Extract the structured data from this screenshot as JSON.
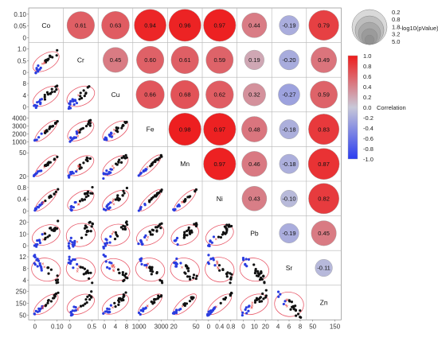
{
  "chart_data": {
    "type": "scatterplot-matrix-correlation",
    "variables": [
      "Co",
      "Cr",
      "Cu",
      "Fe",
      "Mn",
      "Ni",
      "Pb",
      "Sr",
      "Zn"
    ],
    "correlation_upper": [
      {
        "row": "Co",
        "col": "Cr",
        "r": 0.61,
        "label": "0.61"
      },
      {
        "row": "Co",
        "col": "Cu",
        "r": 0.63,
        "label": "0.63"
      },
      {
        "row": "Co",
        "col": "Fe",
        "r": 0.94,
        "label": "0.94"
      },
      {
        "row": "Co",
        "col": "Mn",
        "r": 0.96,
        "label": "0.96"
      },
      {
        "row": "Co",
        "col": "Ni",
        "r": 0.97,
        "label": "0.97"
      },
      {
        "row": "Co",
        "col": "Pb",
        "r": 0.44,
        "label": "0.44"
      },
      {
        "row": "Co",
        "col": "Sr",
        "r": -0.19,
        "label": "-0.19"
      },
      {
        "row": "Co",
        "col": "Zn",
        "r": 0.79,
        "label": "0.79"
      },
      {
        "row": "Cr",
        "col": "Cu",
        "r": 0.45,
        "label": "0.45"
      },
      {
        "row": "Cr",
        "col": "Fe",
        "r": 0.6,
        "label": "0.60"
      },
      {
        "row": "Cr",
        "col": "Mn",
        "r": 0.61,
        "label": "0.61"
      },
      {
        "row": "Cr",
        "col": "Ni",
        "r": 0.59,
        "label": "0.59"
      },
      {
        "row": "Cr",
        "col": "Pb",
        "r": 0.19,
        "label": "0.19"
      },
      {
        "row": "Cr",
        "col": "Sr",
        "r": -0.2,
        "label": "-0.20"
      },
      {
        "row": "Cr",
        "col": "Zn",
        "r": 0.49,
        "label": "0.49"
      },
      {
        "row": "Cu",
        "col": "Fe",
        "r": 0.66,
        "label": "0.66"
      },
      {
        "row": "Cu",
        "col": "Mn",
        "r": 0.68,
        "label": "0.68"
      },
      {
        "row": "Cu",
        "col": "Ni",
        "r": 0.62,
        "label": "0.62"
      },
      {
        "row": "Cu",
        "col": "Pb",
        "r": 0.32,
        "label": "0.32"
      },
      {
        "row": "Cu",
        "col": "Sr",
        "r": -0.27,
        "label": "-0.27"
      },
      {
        "row": "Cu",
        "col": "Zn",
        "r": 0.59,
        "label": "0.59"
      },
      {
        "row": "Fe",
        "col": "Mn",
        "r": 0.98,
        "label": "0.98"
      },
      {
        "row": "Fe",
        "col": "Ni",
        "r": 0.97,
        "label": "0.97"
      },
      {
        "row": "Fe",
        "col": "Pb",
        "r": 0.48,
        "label": "0.48"
      },
      {
        "row": "Fe",
        "col": "Sr",
        "r": -0.18,
        "label": "-0.18"
      },
      {
        "row": "Fe",
        "col": "Zn",
        "r": 0.83,
        "label": "0.83"
      },
      {
        "row": "Mn",
        "col": "Ni",
        "r": 0.97,
        "label": "0.97"
      },
      {
        "row": "Mn",
        "col": "Pb",
        "r": 0.46,
        "label": "0.46"
      },
      {
        "row": "Mn",
        "col": "Sr",
        "r": -0.18,
        "label": "-0.18"
      },
      {
        "row": "Mn",
        "col": "Zn",
        "r": 0.87,
        "label": "0.87"
      },
      {
        "row": "Ni",
        "col": "Pb",
        "r": 0.43,
        "label": "0.43"
      },
      {
        "row": "Ni",
        "col": "Sr",
        "r": -0.1,
        "label": "-0.10"
      },
      {
        "row": "Ni",
        "col": "Zn",
        "r": 0.82,
        "label": "0.82"
      },
      {
        "row": "Pb",
        "col": "Sr",
        "r": -0.19,
        "label": "-0.19"
      },
      {
        "row": "Pb",
        "col": "Zn",
        "r": 0.45,
        "label": "0.45"
      },
      {
        "row": "Sr",
        "col": "Zn",
        "r": -0.11,
        "label": "-0.11"
      }
    ],
    "x_axis_ticks": [
      {
        "var": "Co",
        "ticks": [
          "0",
          "0.10"
        ]
      },
      {
        "var": "Cr",
        "ticks": [
          "0",
          "0.5"
        ]
      },
      {
        "var": "Cu",
        "ticks": [
          "0",
          "4",
          "8"
        ]
      },
      {
        "var": "Fe",
        "ticks": [
          "1000",
          "3000"
        ]
      },
      {
        "var": "Mn",
        "ticks": [
          "20",
          "50"
        ]
      },
      {
        "var": "Ni",
        "ticks": [
          "0",
          "0.4",
          "0.8"
        ]
      },
      {
        "var": "Pb",
        "ticks": [
          "0",
          "10",
          "20"
        ]
      },
      {
        "var": "Sr",
        "ticks": [
          "4",
          "6",
          "8"
        ]
      },
      {
        "var": "Zn",
        "ticks": [
          "50",
          "150"
        ]
      }
    ],
    "y_axis_ticks": [
      {
        "var": "Co",
        "ticks": [
          "0.10",
          "0.05",
          "0"
        ]
      },
      {
        "var": "Cr",
        "ticks": [
          "1.0",
          "0.5",
          "0"
        ]
      },
      {
        "var": "Cu",
        "ticks": [
          "8",
          "4",
          "0"
        ]
      },
      {
        "var": "Fe",
        "ticks": [
          "4000",
          "3000",
          "2000",
          "1000"
        ]
      },
      {
        "var": "Mn",
        "ticks": [
          "50",
          "20"
        ]
      },
      {
        "var": "Ni",
        "ticks": [
          "0.8",
          "0.4",
          "0"
        ]
      },
      {
        "var": "Pb",
        "ticks": [
          "20",
          "10",
          "0"
        ]
      },
      {
        "var": "Sr",
        "ticks": [
          "12",
          "8",
          "4"
        ]
      },
      {
        "var": "Zn",
        "ticks": [
          "250",
          "150",
          "50"
        ]
      }
    ],
    "size_legend": {
      "title": "-log10(pValue)",
      "labels": [
        "0.2",
        "0.8",
        "1.8",
        "3.2",
        "5.0"
      ]
    },
    "color_legend": {
      "title": "Correlation",
      "labels": [
        "1.0",
        "0.8",
        "0.6",
        "0.4",
        "0.2",
        "0.0",
        "-0.2",
        "-0.4",
        "-0.6",
        "-0.8",
        "-1.0"
      ]
    },
    "colors": {
      "positive": "#ee1c1c",
      "neutral": "#c8c8d8",
      "negative": "#2a3cf0",
      "ellipse": "#e85a6a",
      "points_black": "#111111",
      "points_blue": "#2a3ce0",
      "points_red_x": "#e03030"
    }
  }
}
